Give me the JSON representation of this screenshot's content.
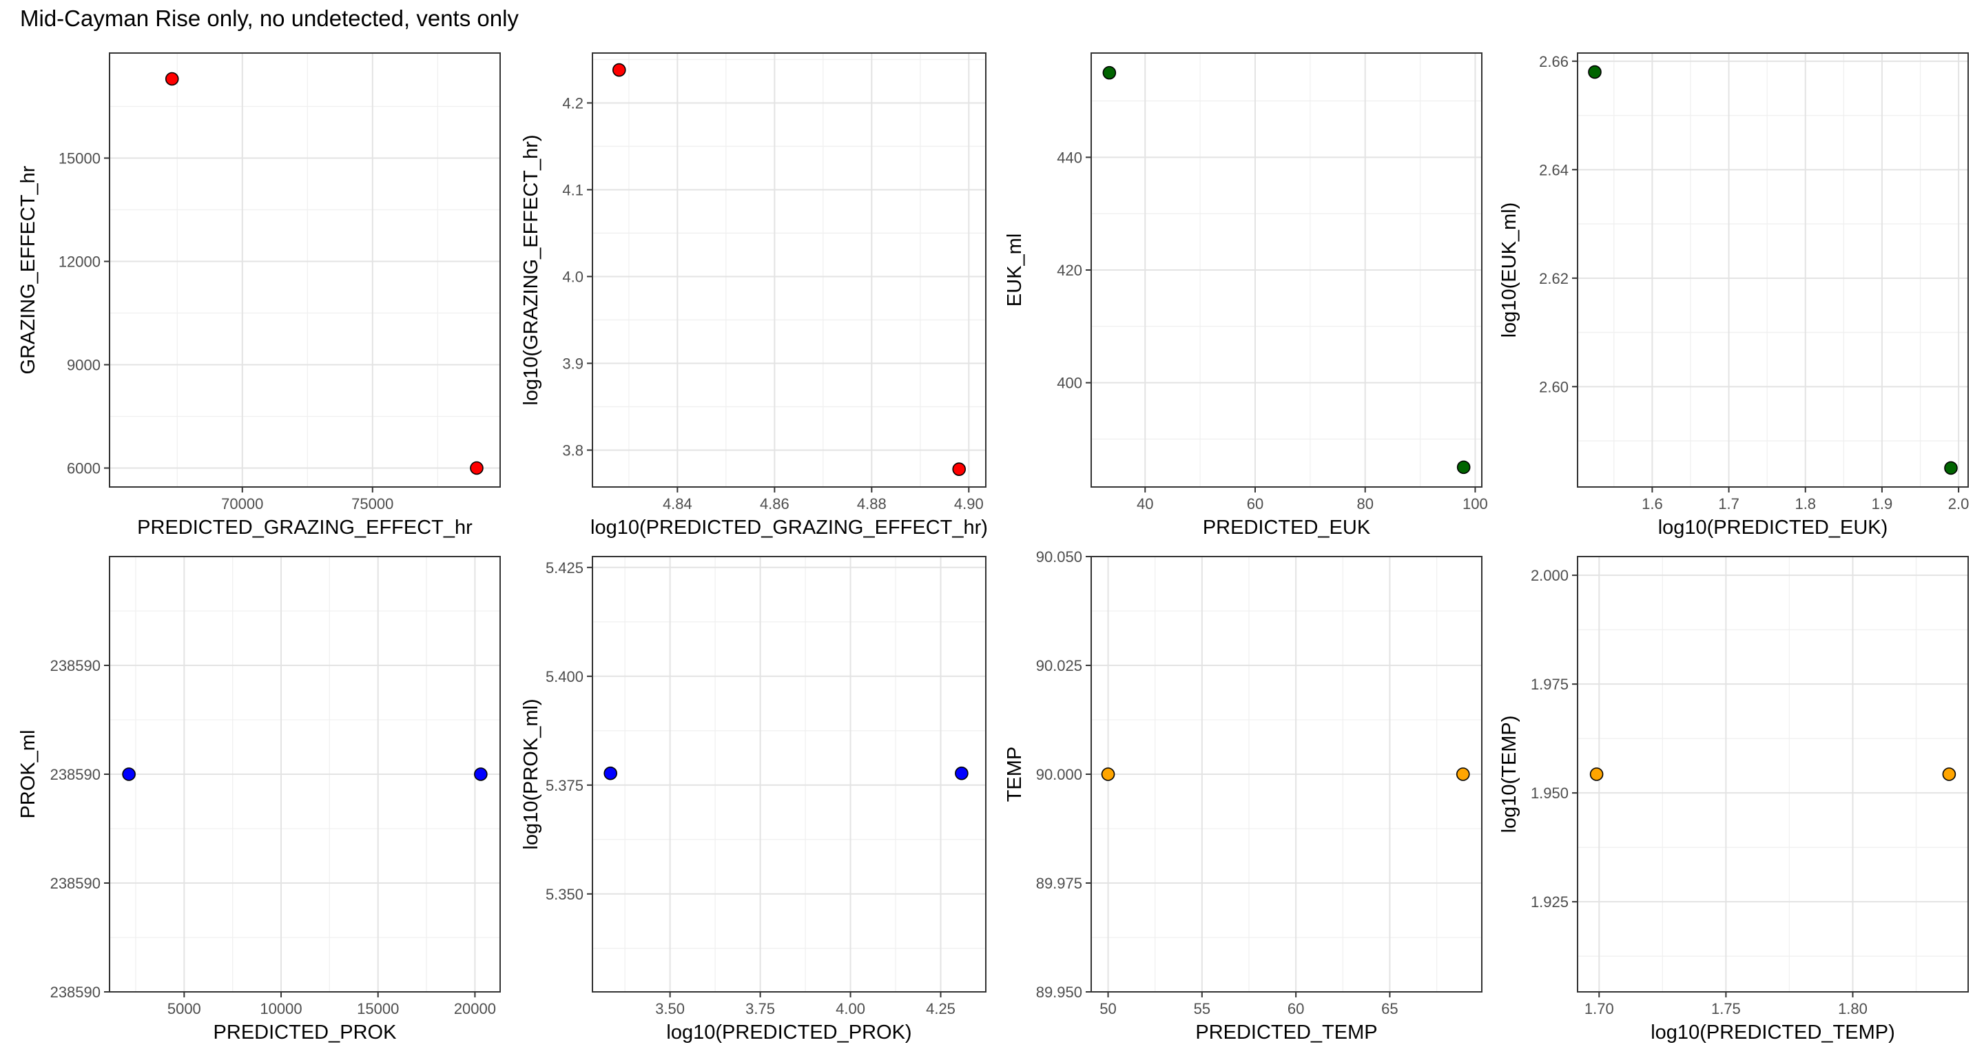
{
  "page": {
    "title": "Mid-Cayman Rise only, no undetected, vents only"
  },
  "chart_data": [
    {
      "type": "scatter",
      "xlabel": "PREDICTED_GRAZING_EFFECT_hr",
      "ylabel": "GRAZING_EFFECT_hr",
      "xlim": [
        64900,
        79900
      ],
      "ylim": [
        5450,
        18050
      ],
      "x_ticks": [
        70000,
        75000
      ],
      "x_tick_labels": [
        "70000",
        "75000"
      ],
      "y_ticks": [
        6000,
        9000,
        12000,
        15000
      ],
      "y_tick_labels": [
        "6000",
        "9000",
        "12000",
        "15000"
      ],
      "point_color": "#ff0000",
      "points": [
        {
          "x": 67300,
          "y": 17300
        },
        {
          "x": 79000,
          "y": 6000
        }
      ],
      "grid": true
    },
    {
      "type": "scatter",
      "xlabel": "log10(PREDICTED_GRAZING_EFFECT_hr)",
      "ylabel": "log10(GRAZING_EFFECT_hr)",
      "xlim": [
        4.8225,
        4.9035
      ],
      "ylim": [
        3.7575,
        4.2575
      ],
      "x_ticks": [
        4.84,
        4.86,
        4.88,
        4.9
      ],
      "x_tick_labels": [
        "4.84",
        "4.86",
        "4.88",
        "4.90"
      ],
      "y_ticks": [
        3.8,
        3.9,
        4.0,
        4.1,
        4.2
      ],
      "y_tick_labels": [
        "3.8",
        "3.9",
        "4.0",
        "4.1",
        "4.2"
      ],
      "point_color": "#ff0000",
      "points": [
        {
          "x": 4.828,
          "y": 4.238
        },
        {
          "x": 4.898,
          "y": 3.778
        }
      ],
      "grid": true
    },
    {
      "type": "scatter",
      "xlabel": "PREDICTED_EUK",
      "ylabel": "EUK_ml",
      "xlim": [
        30.2,
        101.2
      ],
      "ylim": [
        381.5,
        458.5
      ],
      "x_ticks": [
        40,
        60,
        80,
        100
      ],
      "x_tick_labels": [
        "40",
        "60",
        "80",
        "100"
      ],
      "y_ticks": [
        400,
        420,
        440
      ],
      "y_tick_labels": [
        "400",
        "420",
        "440"
      ],
      "point_color": "#006400",
      "points": [
        {
          "x": 33.5,
          "y": 455
        },
        {
          "x": 97.9,
          "y": 385
        }
      ],
      "grid": true
    },
    {
      "type": "scatter",
      "xlabel": "log10(PREDICTED_EUK)",
      "ylabel": "log10(EUK_ml)",
      "xlim": [
        1.5025,
        2.0125
      ],
      "ylim": [
        2.5815,
        2.6615
      ],
      "x_ticks": [
        1.6,
        1.7,
        1.8,
        1.9,
        2.0
      ],
      "x_tick_labels": [
        "1.6",
        "1.7",
        "1.8",
        "1.9",
        "2.0"
      ],
      "y_ticks": [
        2.6,
        2.62,
        2.64,
        2.66
      ],
      "y_tick_labels": [
        "2.60",
        "2.62",
        "2.64",
        "2.66"
      ],
      "point_color": "#006400",
      "points": [
        {
          "x": 1.525,
          "y": 2.658
        },
        {
          "x": 1.99,
          "y": 2.585
        }
      ],
      "grid": true
    },
    {
      "type": "scatter",
      "xlabel": "PREDICTED_PROK",
      "ylabel": "PROK_ml",
      "xlim": [
        1150,
        21300
      ],
      "ylim": [
        -0.5,
        0.5
      ],
      "x_ticks": [
        5000,
        10000,
        15000,
        20000
      ],
      "x_tick_labels": [
        "5000",
        "10000",
        "15000",
        "20000"
      ],
      "y_ticks": [
        -0.5,
        -0.25,
        0.0,
        0.25
      ],
      "y_tick_labels": [
        "238590",
        "238590",
        "238590",
        "238590"
      ],
      "point_color": "#0000ff",
      "points": [
        {
          "x": 2150,
          "y": 0.0
        },
        {
          "x": 20300,
          "y": 0.0
        }
      ],
      "grid": true
    },
    {
      "type": "scatter",
      "xlabel": "log10(PREDICTED_PROK)",
      "ylabel": "log10(PROK_ml)",
      "xlim": [
        3.285,
        4.375
      ],
      "ylim": [
        5.3275,
        5.4275
      ],
      "x_ticks": [
        3.5,
        3.75,
        4.0,
        4.25
      ],
      "x_tick_labels": [
        "3.50",
        "3.75",
        "4.00",
        "4.25"
      ],
      "y_ticks": [
        5.35,
        5.375,
        5.4,
        5.425
      ],
      "y_tick_labels": [
        "5.350",
        "5.375",
        "5.400",
        "5.425"
      ],
      "point_color": "#0000ff",
      "points": [
        {
          "x": 3.335,
          "y": 5.3777
        },
        {
          "x": 4.308,
          "y": 5.3777
        }
      ],
      "grid": true
    },
    {
      "type": "scatter",
      "xlabel": "PREDICTED_TEMP",
      "ylabel": "TEMP",
      "xlim": [
        49.1,
        69.9
      ],
      "ylim": [
        89.95,
        90.05
      ],
      "x_ticks": [
        50,
        55,
        60,
        65
      ],
      "x_tick_labels": [
        "50",
        "55",
        "60",
        "65"
      ],
      "y_ticks": [
        89.95,
        89.975,
        90.0,
        90.025,
        90.05
      ],
      "y_tick_labels": [
        "89.950",
        "89.975",
        "90.000",
        "90.025",
        "90.050"
      ],
      "point_color": "#ffa500",
      "points": [
        {
          "x": 50,
          "y": 90.0
        },
        {
          "x": 68.9,
          "y": 90.0
        }
      ],
      "grid": true
    },
    {
      "type": "scatter",
      "xlabel": "log10(PREDICTED_TEMP)",
      "ylabel": "log10(TEMP)",
      "xlim": [
        1.6915,
        1.8455
      ],
      "ylim": [
        1.9043,
        2.0043
      ],
      "x_ticks": [
        1.7,
        1.75,
        1.8
      ],
      "x_tick_labels": [
        "1.70",
        "1.75",
        "1.80"
      ],
      "y_ticks": [
        1.925,
        1.95,
        1.975,
        2.0
      ],
      "y_tick_labels": [
        "1.925",
        "1.950",
        "1.975",
        "2.000"
      ],
      "point_color": "#ffa500",
      "points": [
        {
          "x": 1.699,
          "y": 1.9543
        },
        {
          "x": 1.838,
          "y": 1.9543
        }
      ],
      "grid": true
    }
  ]
}
